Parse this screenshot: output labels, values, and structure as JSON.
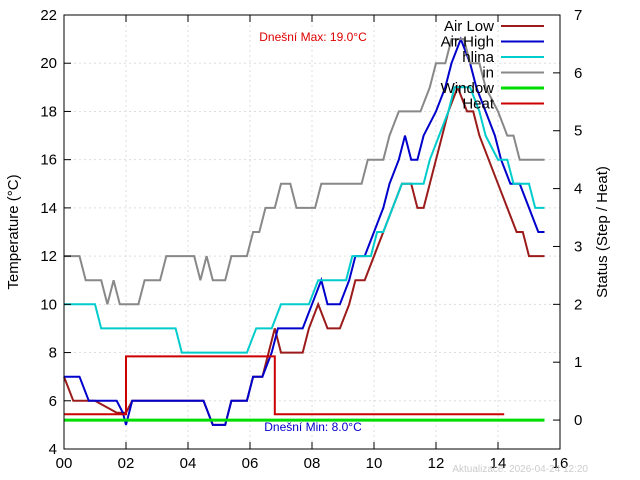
{
  "chart_data": {
    "type": "line",
    "xlabel": "",
    "ylabel": "Temperature (°C)",
    "y2label": "Status (Step / Heat)",
    "xlim": [
      0,
      16
    ],
    "ylim": [
      4,
      22
    ],
    "y2lim": [
      -0.5,
      7
    ],
    "x_ticks": [
      0,
      2,
      4,
      6,
      8,
      10,
      12,
      14,
      16
    ],
    "x_tick_labels": [
      "00",
      "02",
      "04",
      "06",
      "08",
      "10",
      "12",
      "14",
      "16"
    ],
    "y_ticks": [
      4,
      6,
      8,
      10,
      12,
      14,
      16,
      18,
      20,
      22
    ],
    "y2_ticks": [
      0,
      1,
      2,
      3,
      4,
      5,
      6,
      7
    ],
    "grid": true,
    "legend_position": "top-right",
    "annotations": {
      "max_label": "Dnešní Max: 19.0°C",
      "min_label": "Dnešní Min: 8.0°C",
      "updated": "Aktualizace: 2026-04-24 12:20"
    },
    "series": [
      {
        "name": "Air Low",
        "color": "#9b1b1b",
        "axis": "y1",
        "points": [
          [
            0,
            7
          ],
          [
            0.3,
            6
          ],
          [
            1,
            6
          ],
          [
            1.7,
            5.5
          ],
          [
            2,
            5.5
          ],
          [
            2.2,
            6
          ],
          [
            4.5,
            6
          ],
          [
            4.8,
            5
          ],
          [
            5.2,
            5
          ],
          [
            5.4,
            6
          ],
          [
            5.9,
            6
          ],
          [
            6.1,
            7
          ],
          [
            6.4,
            7
          ],
          [
            6.6,
            8
          ],
          [
            6.8,
            9
          ],
          [
            7,
            8
          ],
          [
            7.7,
            8
          ],
          [
            7.9,
            9
          ],
          [
            8.2,
            10
          ],
          [
            8.5,
            9
          ],
          [
            8.9,
            9
          ],
          [
            9.2,
            10
          ],
          [
            9.4,
            11
          ],
          [
            9.7,
            11
          ],
          [
            10,
            12
          ],
          [
            10.3,
            13
          ],
          [
            10.6,
            14
          ],
          [
            10.9,
            15
          ],
          [
            11.2,
            15
          ],
          [
            11.4,
            14
          ],
          [
            11.6,
            14
          ],
          [
            11.8,
            15
          ],
          [
            12.2,
            17
          ],
          [
            12.4,
            18
          ],
          [
            12.7,
            19
          ],
          [
            13.0,
            18
          ],
          [
            13.2,
            18
          ],
          [
            13.4,
            17
          ],
          [
            13.7,
            16
          ],
          [
            14,
            15
          ],
          [
            14.3,
            14
          ],
          [
            14.6,
            13
          ],
          [
            14.8,
            13
          ],
          [
            15,
            12
          ],
          [
            15.5,
            12
          ]
        ]
      },
      {
        "name": "Air High",
        "color": "#0000cc",
        "axis": "y1",
        "points": [
          [
            0,
            7
          ],
          [
            0.5,
            7
          ],
          [
            0.8,
            6
          ],
          [
            1.7,
            6
          ],
          [
            1.9,
            5.5
          ],
          [
            2,
            5
          ],
          [
            2.2,
            6
          ],
          [
            4.5,
            6
          ],
          [
            4.8,
            5
          ],
          [
            5.2,
            5
          ],
          [
            5.4,
            6
          ],
          [
            5.9,
            6
          ],
          [
            6.1,
            7
          ],
          [
            6.4,
            7
          ],
          [
            6.7,
            8
          ],
          [
            6.9,
            9
          ],
          [
            7.7,
            9
          ],
          [
            8,
            10
          ],
          [
            8.3,
            11
          ],
          [
            8.5,
            10
          ],
          [
            8.9,
            10
          ],
          [
            9.2,
            11
          ],
          [
            9.4,
            12
          ],
          [
            9.7,
            12
          ],
          [
            10,
            13
          ],
          [
            10.3,
            14
          ],
          [
            10.5,
            15
          ],
          [
            10.8,
            16
          ],
          [
            11,
            17
          ],
          [
            11.2,
            16
          ],
          [
            11.4,
            16
          ],
          [
            11.6,
            17
          ],
          [
            12,
            18
          ],
          [
            12.3,
            19
          ],
          [
            12.5,
            20
          ],
          [
            12.8,
            21
          ],
          [
            13.1,
            20
          ],
          [
            13.3,
            19
          ],
          [
            13.6,
            18
          ],
          [
            13.9,
            17
          ],
          [
            14.1,
            16
          ],
          [
            14.4,
            15
          ],
          [
            14.7,
            15
          ],
          [
            15,
            14
          ],
          [
            15.3,
            13
          ],
          [
            15.5,
            13
          ]
        ]
      },
      {
        "name": "hlina",
        "color": "#00cccc",
        "axis": "y1",
        "points": [
          [
            0,
            10
          ],
          [
            1,
            10
          ],
          [
            1.2,
            9
          ],
          [
            3.6,
            9
          ],
          [
            3.8,
            8
          ],
          [
            5.9,
            8
          ],
          [
            6.2,
            9
          ],
          [
            6.7,
            9
          ],
          [
            7,
            10
          ],
          [
            7.9,
            10
          ],
          [
            8.2,
            11
          ],
          [
            9.1,
            11
          ],
          [
            9.3,
            12
          ],
          [
            9.9,
            12
          ],
          [
            10.1,
            13
          ],
          [
            10.3,
            13
          ],
          [
            10.6,
            14
          ],
          [
            10.9,
            15
          ],
          [
            11.6,
            15
          ],
          [
            11.8,
            16
          ],
          [
            12.1,
            17
          ],
          [
            12.4,
            18
          ],
          [
            12.6,
            19
          ],
          [
            13.1,
            19
          ],
          [
            13.4,
            18
          ],
          [
            13.6,
            17
          ],
          [
            14,
            16
          ],
          [
            14.3,
            16
          ],
          [
            14.5,
            15
          ],
          [
            15,
            15
          ],
          [
            15.2,
            14
          ],
          [
            15.5,
            14
          ]
        ]
      },
      {
        "name": "in",
        "color": "#888888",
        "axis": "y1",
        "points": [
          [
            0,
            12
          ],
          [
            0.5,
            12
          ],
          [
            0.7,
            11
          ],
          [
            1.2,
            11
          ],
          [
            1.4,
            10
          ],
          [
            1.6,
            11
          ],
          [
            1.8,
            10
          ],
          [
            2.4,
            10
          ],
          [
            2.6,
            11
          ],
          [
            3.1,
            11
          ],
          [
            3.3,
            12
          ],
          [
            4.2,
            12
          ],
          [
            4.4,
            11
          ],
          [
            4.6,
            12
          ],
          [
            4.8,
            11
          ],
          [
            5.2,
            11
          ],
          [
            5.4,
            12
          ],
          [
            5.9,
            12
          ],
          [
            6.1,
            13
          ],
          [
            6.3,
            13
          ],
          [
            6.5,
            14
          ],
          [
            6.8,
            14
          ],
          [
            7,
            15
          ],
          [
            7.3,
            15
          ],
          [
            7.5,
            14
          ],
          [
            8.1,
            14
          ],
          [
            8.3,
            15
          ],
          [
            9.6,
            15
          ],
          [
            9.8,
            16
          ],
          [
            10.3,
            16
          ],
          [
            10.5,
            17
          ],
          [
            10.8,
            18
          ],
          [
            11.5,
            18
          ],
          [
            11.8,
            19
          ],
          [
            12,
            20
          ],
          [
            12.3,
            20
          ],
          [
            12.5,
            21
          ],
          [
            12.9,
            21
          ],
          [
            13.1,
            20
          ],
          [
            13.4,
            20
          ],
          [
            13.6,
            19
          ],
          [
            14,
            18
          ],
          [
            14.3,
            17
          ],
          [
            14.5,
            17
          ],
          [
            14.7,
            16
          ],
          [
            15.5,
            16
          ]
        ]
      },
      {
        "name": "Window",
        "color": "#00dd00",
        "axis": "y2",
        "points": [
          [
            0,
            0
          ],
          [
            15.5,
            0
          ]
        ]
      },
      {
        "name": "Heat",
        "color": "#cc0000",
        "axis": "y2",
        "points": [
          [
            0,
            0.1
          ],
          [
            2,
            0.1
          ],
          [
            2,
            1.1
          ],
          [
            6.8,
            1.1
          ],
          [
            6.8,
            0.1
          ],
          [
            14.2,
            0.1
          ]
        ]
      }
    ]
  }
}
